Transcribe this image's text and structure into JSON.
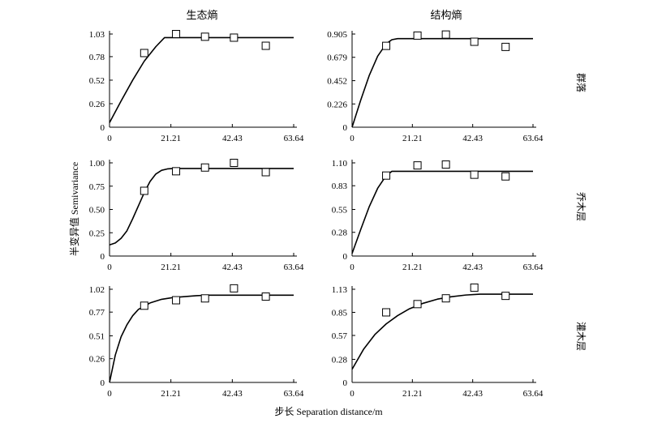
{
  "figure": {
    "column_titles": [
      "生态熵",
      "结构熵"
    ],
    "row_labels": [
      "群落",
      "乔木层",
      "灌木层"
    ],
    "y_axis_label": "半变异值 Semivariance",
    "x_axis_label": "步长 Separation distance/m"
  },
  "chart_data": [
    {
      "type": "scatter",
      "panel": "row1-col1",
      "xlim": [
        0,
        63.64
      ],
      "x_ticks": [
        "0",
        "21.21",
        "42.43",
        "63.64"
      ],
      "ylim": [
        0,
        1.03
      ],
      "y_ticks": [
        "0",
        "0.26",
        "0.52",
        "0.78",
        "1.03"
      ],
      "points": {
        "x": [
          12,
          23,
          33,
          43,
          54
        ],
        "y": [
          0.82,
          1.03,
          1.0,
          0.99,
          0.9
        ]
      },
      "fit_curve": {
        "x": [
          0,
          4,
          8,
          12,
          16,
          19,
          22,
          64
        ],
        "y": [
          0.05,
          0.29,
          0.52,
          0.73,
          0.89,
          0.99,
          0.99,
          0.99
        ]
      }
    },
    {
      "type": "scatter",
      "panel": "row1-col2",
      "xlim": [
        0,
        63.64
      ],
      "x_ticks": [
        "0",
        "21.21",
        "42.43",
        "63.64"
      ],
      "ylim": [
        0,
        0.905
      ],
      "y_ticks": [
        "0",
        "0.226",
        "0.452",
        "0.679",
        "0.905"
      ],
      "points": {
        "x": [
          12,
          23,
          33,
          43,
          54
        ],
        "y": [
          0.79,
          0.89,
          0.9,
          0.83,
          0.78
        ]
      },
      "fit_curve": {
        "x": [
          0,
          3,
          6,
          9,
          12,
          14,
          16,
          64
        ],
        "y": [
          0,
          0.26,
          0.5,
          0.69,
          0.81,
          0.85,
          0.86,
          0.86
        ]
      }
    },
    {
      "type": "scatter",
      "panel": "row2-col1",
      "xlim": [
        0,
        63.64
      ],
      "x_ticks": [
        "0",
        "21.21",
        "42.43",
        "63.64"
      ],
      "ylim": [
        0,
        1.0
      ],
      "y_ticks": [
        "0",
        "0.25",
        "0.50",
        "0.75",
        "1.00"
      ],
      "points": {
        "x": [
          12,
          23,
          33,
          43,
          54
        ],
        "y": [
          0.7,
          0.91,
          0.95,
          1.0,
          0.9
        ]
      },
      "fit_curve": {
        "x": [
          0,
          2,
          4,
          6,
          8,
          10,
          12,
          14,
          16,
          18,
          20,
          22,
          24,
          64
        ],
        "y": [
          0.12,
          0.14,
          0.19,
          0.27,
          0.4,
          0.54,
          0.68,
          0.8,
          0.88,
          0.92,
          0.935,
          0.94,
          0.94,
          0.94
        ]
      }
    },
    {
      "type": "scatter",
      "panel": "row2-col2",
      "xlim": [
        0,
        63.64
      ],
      "x_ticks": [
        "0",
        "21.21",
        "42.43",
        "63.64"
      ],
      "ylim": [
        0,
        1.1
      ],
      "y_ticks": [
        "0",
        "0.28",
        "0.55",
        "0.83",
        "1.10"
      ],
      "points": {
        "x": [
          12,
          23,
          33,
          43,
          54
        ],
        "y": [
          0.95,
          1.07,
          1.08,
          0.96,
          0.94
        ]
      },
      "fit_curve": {
        "x": [
          0,
          3,
          6,
          9,
          12,
          14,
          15,
          64
        ],
        "y": [
          0.03,
          0.31,
          0.58,
          0.8,
          0.95,
          1.0,
          1.0,
          1.0
        ]
      }
    },
    {
      "type": "scatter",
      "panel": "row3-col1",
      "xlim": [
        0,
        63.64
      ],
      "x_ticks": [
        "0",
        "21.21",
        "42.43",
        "63.64"
      ],
      "ylim": [
        0,
        1.02
      ],
      "y_ticks": [
        "0",
        "0.26",
        "0.51",
        "0.77",
        "1.02"
      ],
      "points": {
        "x": [
          12,
          23,
          33,
          43,
          54
        ],
        "y": [
          0.84,
          0.9,
          0.92,
          1.03,
          0.94
        ]
      },
      "fit_curve": {
        "x": [
          0,
          2,
          4,
          6,
          8,
          10,
          14,
          18,
          22,
          26,
          30,
          34,
          40,
          64
        ],
        "y": [
          0,
          0.3,
          0.5,
          0.63,
          0.73,
          0.8,
          0.87,
          0.91,
          0.93,
          0.94,
          0.95,
          0.955,
          0.955,
          0.955
        ]
      }
    },
    {
      "type": "scatter",
      "panel": "row3-col2",
      "xlim": [
        0,
        63.64
      ],
      "x_ticks": [
        "0",
        "21.21",
        "42.43",
        "63.64"
      ],
      "ylim": [
        0,
        1.13
      ],
      "y_ticks": [
        "0",
        "0.28",
        "0.57",
        "0.85",
        "1.13"
      ],
      "points": {
        "x": [
          12,
          23,
          33,
          43,
          54
        ],
        "y": [
          0.85,
          0.95,
          1.02,
          1.15,
          1.05
        ]
      },
      "fit_curve": {
        "x": [
          0,
          4,
          8,
          12,
          16,
          20,
          25,
          30,
          35,
          40,
          45,
          64
        ],
        "y": [
          0.16,
          0.4,
          0.58,
          0.71,
          0.81,
          0.89,
          0.96,
          1.01,
          1.04,
          1.06,
          1.07,
          1.07
        ]
      }
    }
  ]
}
